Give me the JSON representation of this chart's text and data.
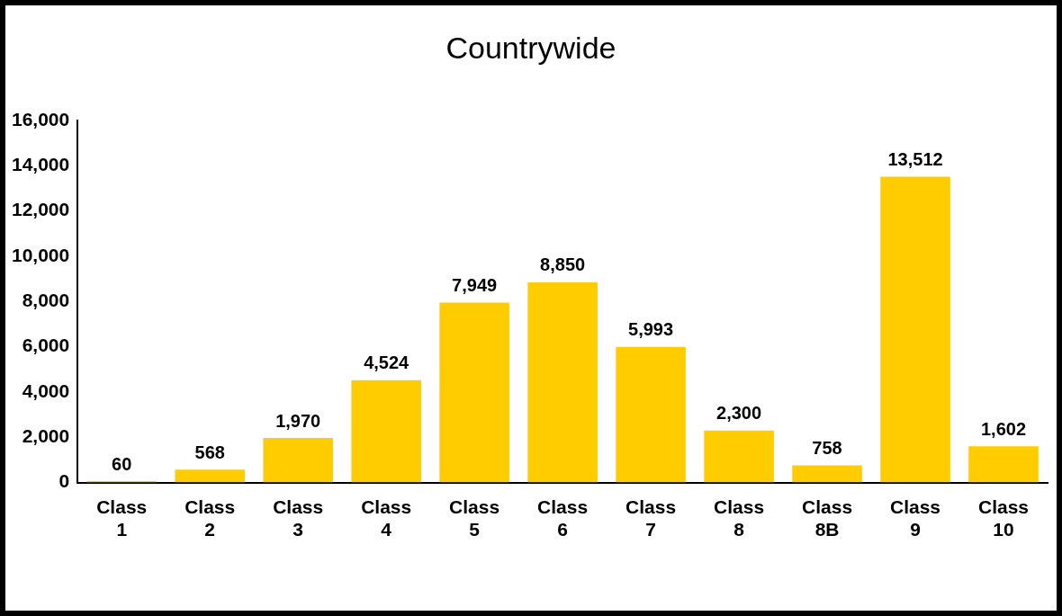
{
  "chart_data": {
    "type": "bar",
    "title": "Countrywide",
    "categories": [
      "Class 1",
      "Class 2",
      "Class 3",
      "Class 4",
      "Class 5",
      "Class 6",
      "Class 7",
      "Class 8",
      "Class 8B",
      "Class 9",
      "Class 10"
    ],
    "values": [
      60,
      568,
      1970,
      4524,
      7949,
      8850,
      5993,
      2300,
      758,
      13512,
      1602
    ],
    "value_labels": [
      "60",
      "568",
      "1,970",
      "4,524",
      "7,949",
      "8,850",
      "5,993",
      "2,300",
      "758",
      "13,512",
      "1,602"
    ],
    "color": "#ffcc00",
    "ylim": [
      0,
      16000
    ],
    "yticks": [
      0,
      {
        "value": 2000,
        "label": "2,000"
      },
      {
        "value": 4000,
        "label": "4,000"
      },
      {
        "value": 6000,
        "label": "6,000"
      },
      {
        "value": 8000,
        "label": "8,000"
      },
      {
        "value": 10000,
        "label": "10,000"
      },
      {
        "value": 12000,
        "label": "12,000"
      },
      {
        "value": 14000,
        "label": "14,000"
      },
      {
        "value": 16000,
        "label": "16,000"
      }
    ],
    "grid": false
  }
}
